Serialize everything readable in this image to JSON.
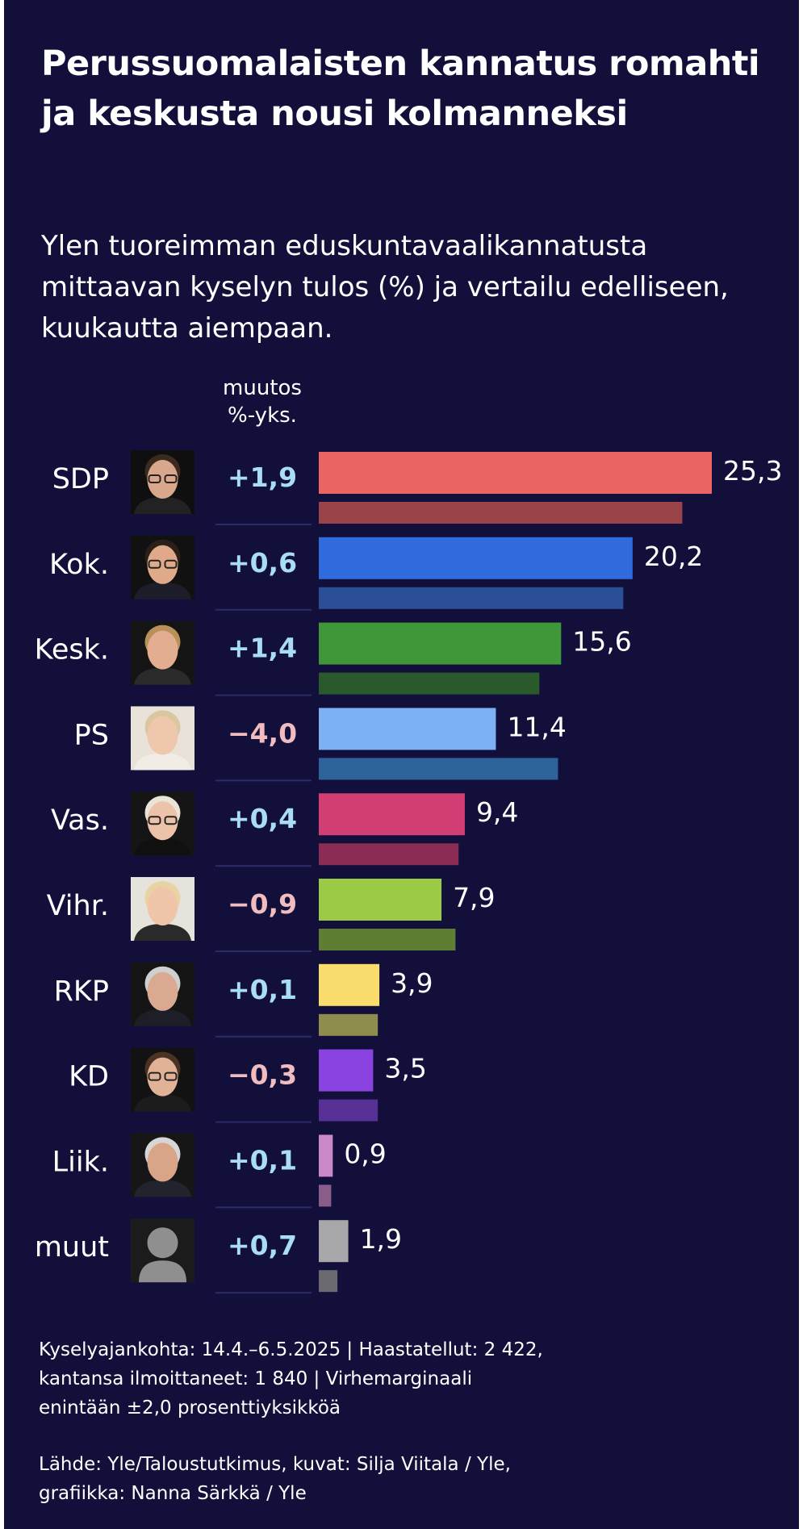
{
  "header": {
    "title": "Perussuomalaisten kannatus romahti ja keskusta nousi kolmanneksi",
    "subtitle": "Ylen tuoreimman eduskuntavaalikannatusta mittaavan kyselyn tulos (%) ja vertailu edelliseen, kuukautta aiempaan.",
    "change_header_line1": "muutos",
    "change_header_line2": "%-yks."
  },
  "colors": {
    "background": "#120f3b",
    "positive_change": "#a9dcf5",
    "negative_change": "#f1bcc0",
    "separator": "#2e2a68"
  },
  "chart_data": {
    "type": "bar",
    "orientation": "horizontal",
    "categories": [
      "SDP",
      "Kok.",
      "Kesk.",
      "PS",
      "Vas.",
      "Vihr.",
      "RKP",
      "KD",
      "Liik.",
      "muut"
    ],
    "series": [
      {
        "role": "current",
        "values": [
          25.3,
          20.2,
          15.6,
          11.4,
          9.4,
          7.9,
          3.9,
          3.5,
          0.9,
          1.9
        ],
        "value_labels": [
          "25,3",
          "20,2",
          "15,6",
          "11,4",
          "9,4",
          "7,9",
          "3,9",
          "3,5",
          "0,9",
          "1,9"
        ],
        "colors": [
          "#eb6565",
          "#2f6bdd",
          "#3f973a",
          "#7db0f5",
          "#d23d74",
          "#9bcb46",
          "#fadc6c",
          "#8a42e1",
          "#cb89c8",
          "#a8a8ab"
        ]
      },
      {
        "role": "previous",
        "values": [
          23.4,
          19.6,
          14.2,
          15.4,
          9.0,
          8.8,
          3.8,
          3.8,
          0.8,
          1.2
        ],
        "colors": [
          "#9a4348",
          "#2a4f97",
          "#2a5a2c",
          "#2e6399",
          "#8a2c54",
          "#5f7e34",
          "#8f8c4f",
          "#573096",
          "#895c8a",
          "#6b6a70"
        ]
      }
    ],
    "changes": [
      "+1,9",
      "+0,6",
      "+1,4",
      "−4,0",
      "+0,4",
      "−0,9",
      "+0,1",
      "−0,3",
      "+0,1",
      "+0,7"
    ],
    "change_signs": [
      "pos",
      "pos",
      "pos",
      "neg",
      "pos",
      "neg",
      "pos",
      "neg",
      "pos",
      "pos"
    ],
    "photos": [
      "portrait-sdp",
      "portrait-kok",
      "portrait-kesk",
      "portrait-ps",
      "portrait-vas",
      "portrait-vihr",
      "portrait-rkp",
      "portrait-kd",
      "portrait-liik",
      "placeholder-silhouette"
    ],
    "xlim": [
      0,
      25.3
    ],
    "grid": false,
    "legend": "none"
  },
  "footer": {
    "meta_line1": "Kyselyajankohta: 14.4.–6.5.2025 | Haastatellut: 2 422,",
    "meta_line2": "kantansa ilmoittaneet: 1 840 | Virhemarginaali",
    "meta_line3": "enintään ±2,0 prosenttiyksikköä",
    "source_line1": "Lähde: Yle/Taloustutkimus, kuvat: Silja Viitala / Yle,",
    "source_line2": "grafiikka: Nanna Särkkä / Yle"
  }
}
